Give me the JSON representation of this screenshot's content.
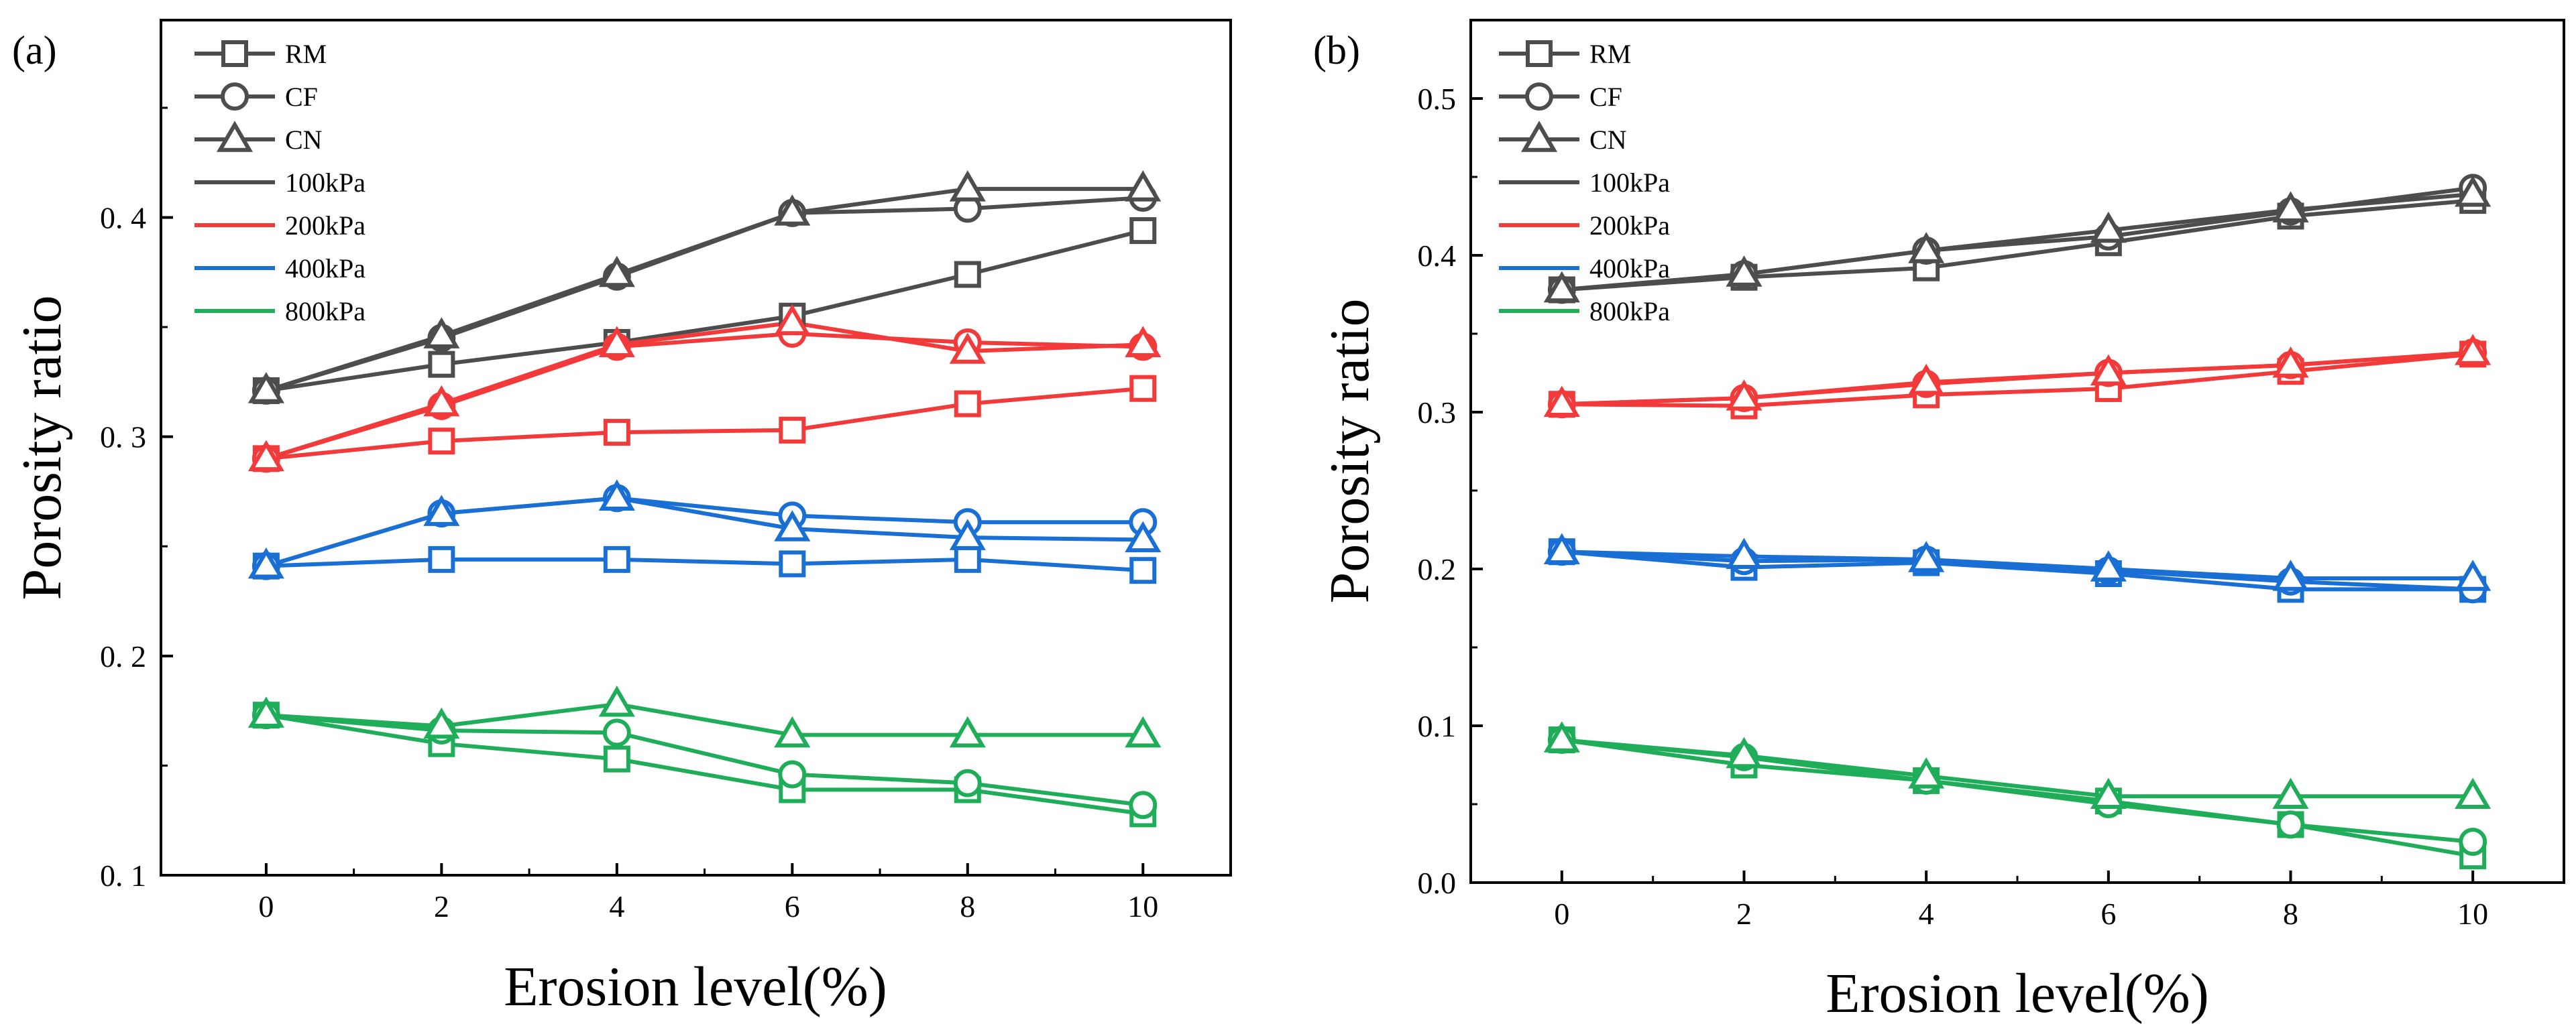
{
  "chart_data": [
    {
      "type": "line",
      "panel_label": "(a)",
      "xlabel": "Erosion level(%)",
      "ylabel": "Porosity ratio",
      "xlim": [
        -1.2,
        11.0
      ],
      "ylim": [
        0.1,
        0.49
      ],
      "x": [
        0,
        2,
        4,
        6,
        8,
        10
      ],
      "xticks": [
        0,
        2,
        4,
        6,
        8,
        10
      ],
      "xtick_labels": [
        "0",
        "2",
        "4",
        "6",
        "8",
        "10"
      ],
      "yticks": [
        0.1,
        0.2,
        0.3,
        0.4
      ],
      "ytick_labels": [
        "0. 1",
        "0. 2",
        "0. 3",
        "0. 4"
      ],
      "legend": {
        "placement": "top-left",
        "markers": [
          {
            "label": "RM",
            "marker": "square"
          },
          {
            "label": "CF",
            "marker": "circle"
          },
          {
            "label": "CN",
            "marker": "triangle"
          }
        ],
        "colors": [
          {
            "label": "100kPa",
            "color": "#4d4d4d"
          },
          {
            "label": "200kPa",
            "color": "#f23a3a"
          },
          {
            "label": "400kPa",
            "color": "#1a6fd4"
          },
          {
            "label": "800kPa",
            "color": "#1fad5a"
          }
        ]
      },
      "series": [
        {
          "name": "RM 100kPa",
          "color": "#4d4d4d",
          "marker": "square",
          "values": [
            0.321,
            0.333,
            0.343,
            0.355,
            0.374,
            0.394
          ]
        },
        {
          "name": "CF 100kPa",
          "color": "#4d4d4d",
          "marker": "circle",
          "values": [
            0.321,
            0.345,
            0.373,
            0.402,
            0.404,
            0.409
          ]
        },
        {
          "name": "CN 100kPa",
          "color": "#4d4d4d",
          "marker": "triangle",
          "values": [
            0.321,
            0.346,
            0.374,
            0.402,
            0.413,
            0.413
          ]
        },
        {
          "name": "RM 200kPa",
          "color": "#f23a3a",
          "marker": "square",
          "values": [
            0.29,
            0.298,
            0.302,
            0.303,
            0.315,
            0.322
          ]
        },
        {
          "name": "CF 200kPa",
          "color": "#f23a3a",
          "marker": "circle",
          "values": [
            0.29,
            0.314,
            0.341,
            0.347,
            0.343,
            0.341
          ]
        },
        {
          "name": "CN 200kPa",
          "color": "#f23a3a",
          "marker": "triangle",
          "values": [
            0.29,
            0.315,
            0.342,
            0.352,
            0.339,
            0.342
          ]
        },
        {
          "name": "RM 400kPa",
          "color": "#1a6fd4",
          "marker": "square",
          "values": [
            0.241,
            0.244,
            0.244,
            0.242,
            0.244,
            0.239
          ]
        },
        {
          "name": "CF 400kPa",
          "color": "#1a6fd4",
          "marker": "circle",
          "values": [
            0.241,
            0.265,
            0.272,
            0.264,
            0.261,
            0.261
          ]
        },
        {
          "name": "CN 400kPa",
          "color": "#1a6fd4",
          "marker": "triangle",
          "values": [
            0.241,
            0.265,
            0.272,
            0.258,
            0.254,
            0.253
          ]
        },
        {
          "name": "RM 800kPa",
          "color": "#1fad5a",
          "marker": "square",
          "values": [
            0.173,
            0.16,
            0.153,
            0.139,
            0.139,
            0.128
          ]
        },
        {
          "name": "CF 800kPa",
          "color": "#1fad5a",
          "marker": "circle",
          "values": [
            0.173,
            0.166,
            0.165,
            0.146,
            0.142,
            0.132
          ]
        },
        {
          "name": "CN 800kPa",
          "color": "#1fad5a",
          "marker": "triangle",
          "values": [
            0.173,
            0.168,
            0.178,
            0.164,
            0.164,
            0.164
          ]
        }
      ]
    },
    {
      "type": "line",
      "panel_label": "(b)",
      "xlabel": "Erosion level(%)",
      "ylabel": "Porosity ratio",
      "xlim": [
        -1.0,
        11.0
      ],
      "ylim": [
        0.0,
        0.55
      ],
      "x": [
        0,
        2,
        4,
        6,
        8,
        10
      ],
      "xticks": [
        0,
        2,
        4,
        6,
        8,
        10
      ],
      "xtick_labels": [
        "0",
        "2",
        "4",
        "6",
        "8",
        "10"
      ],
      "yticks": [
        0.0,
        0.1,
        0.2,
        0.3,
        0.4,
        0.5
      ],
      "ytick_labels": [
        "0.0",
        "0.1",
        "0.2",
        "0.3",
        "0.4",
        "0.5"
      ],
      "legend": {
        "placement": "top-left",
        "markers": [
          {
            "label": "RM",
            "marker": "square"
          },
          {
            "label": "CF",
            "marker": "circle"
          },
          {
            "label": "CN",
            "marker": "triangle"
          }
        ],
        "colors": [
          {
            "label": "100kPa",
            "color": "#4d4d4d"
          },
          {
            "label": "200kPa",
            "color": "#f23a3a"
          },
          {
            "label": "400kPa",
            "color": "#1a6fd4"
          },
          {
            "label": "800kPa",
            "color": "#1fad5a"
          }
        ]
      },
      "series": [
        {
          "name": "RM 100kPa",
          "color": "#4d4d4d",
          "marker": "square",
          "values": [
            0.378,
            0.386,
            0.392,
            0.408,
            0.425,
            0.435
          ]
        },
        {
          "name": "CF 100kPa",
          "color": "#4d4d4d",
          "marker": "circle",
          "values": [
            0.378,
            0.388,
            0.403,
            0.412,
            0.428,
            0.443
          ]
        },
        {
          "name": "CN 100kPa",
          "color": "#4d4d4d",
          "marker": "triangle",
          "values": [
            0.378,
            0.388,
            0.403,
            0.416,
            0.429,
            0.439
          ]
        },
        {
          "name": "RM 200kPa",
          "color": "#f23a3a",
          "marker": "square",
          "values": [
            0.305,
            0.304,
            0.311,
            0.315,
            0.326,
            0.337
          ]
        },
        {
          "name": "CF 200kPa",
          "color": "#f23a3a",
          "marker": "circle",
          "values": [
            0.305,
            0.309,
            0.318,
            0.325,
            0.33,
            0.338
          ]
        },
        {
          "name": "CN 200kPa",
          "color": "#f23a3a",
          "marker": "triangle",
          "values": [
            0.305,
            0.309,
            0.319,
            0.325,
            0.33,
            0.338
          ]
        },
        {
          "name": "RM 400kPa",
          "color": "#1a6fd4",
          "marker": "square",
          "values": [
            0.211,
            0.201,
            0.204,
            0.197,
            0.187,
            0.187
          ]
        },
        {
          "name": "CF 400kPa",
          "color": "#1a6fd4",
          "marker": "circle",
          "values": [
            0.211,
            0.205,
            0.206,
            0.199,
            0.192,
            0.187
          ]
        },
        {
          "name": "CN 400kPa",
          "color": "#1a6fd4",
          "marker": "triangle",
          "values": [
            0.211,
            0.208,
            0.206,
            0.2,
            0.194,
            0.194
          ]
        },
        {
          "name": "RM 800kPa",
          "color": "#1fad5a",
          "marker": "square",
          "values": [
            0.091,
            0.075,
            0.065,
            0.052,
            0.037,
            0.017
          ]
        },
        {
          "name": "CF 800kPa",
          "color": "#1fad5a",
          "marker": "circle",
          "values": [
            0.091,
            0.08,
            0.065,
            0.05,
            0.037,
            0.026
          ]
        },
        {
          "name": "CN 800kPa",
          "color": "#1fad5a",
          "marker": "triangle",
          "values": [
            0.091,
            0.081,
            0.068,
            0.055,
            0.055,
            0.055
          ]
        }
      ]
    }
  ]
}
